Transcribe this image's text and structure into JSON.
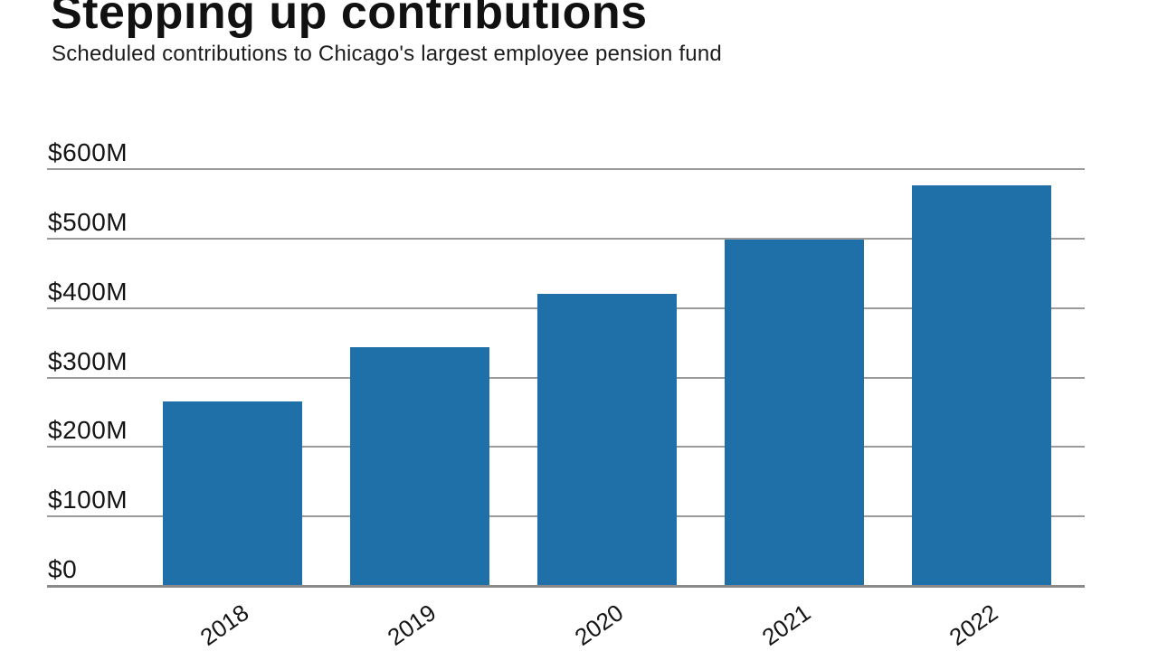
{
  "header": {
    "title": "Stepping up contributions",
    "subtitle": "Scheduled contributions to Chicago's largest employee pension fund"
  },
  "chart_data": {
    "type": "bar",
    "title": "Stepping up contributions",
    "subtitle": "Scheduled contributions to Chicago's largest employee pension fund",
    "categories": [
      "2018",
      "2019",
      "2020",
      "2021",
      "2022"
    ],
    "values": [
      266,
      344,
      421,
      499,
      576
    ],
    "unit": "millions of dollars",
    "xlabel": "",
    "ylabel": "",
    "ylim": [
      0,
      600
    ],
    "yticks": [
      0,
      100,
      200,
      300,
      400,
      500,
      600
    ],
    "ytick_labels": [
      "$0",
      "$100M",
      "$200M",
      "$300M",
      "$400M",
      "$500M",
      "$600M"
    ],
    "x_tick_rotation_deg": -35,
    "grid": true,
    "legend": "none",
    "colors": {
      "bar": "#1f6fa8",
      "gridline": "#9b9b9b",
      "axis_line": "#8a8a8a",
      "text": "#141414"
    }
  }
}
